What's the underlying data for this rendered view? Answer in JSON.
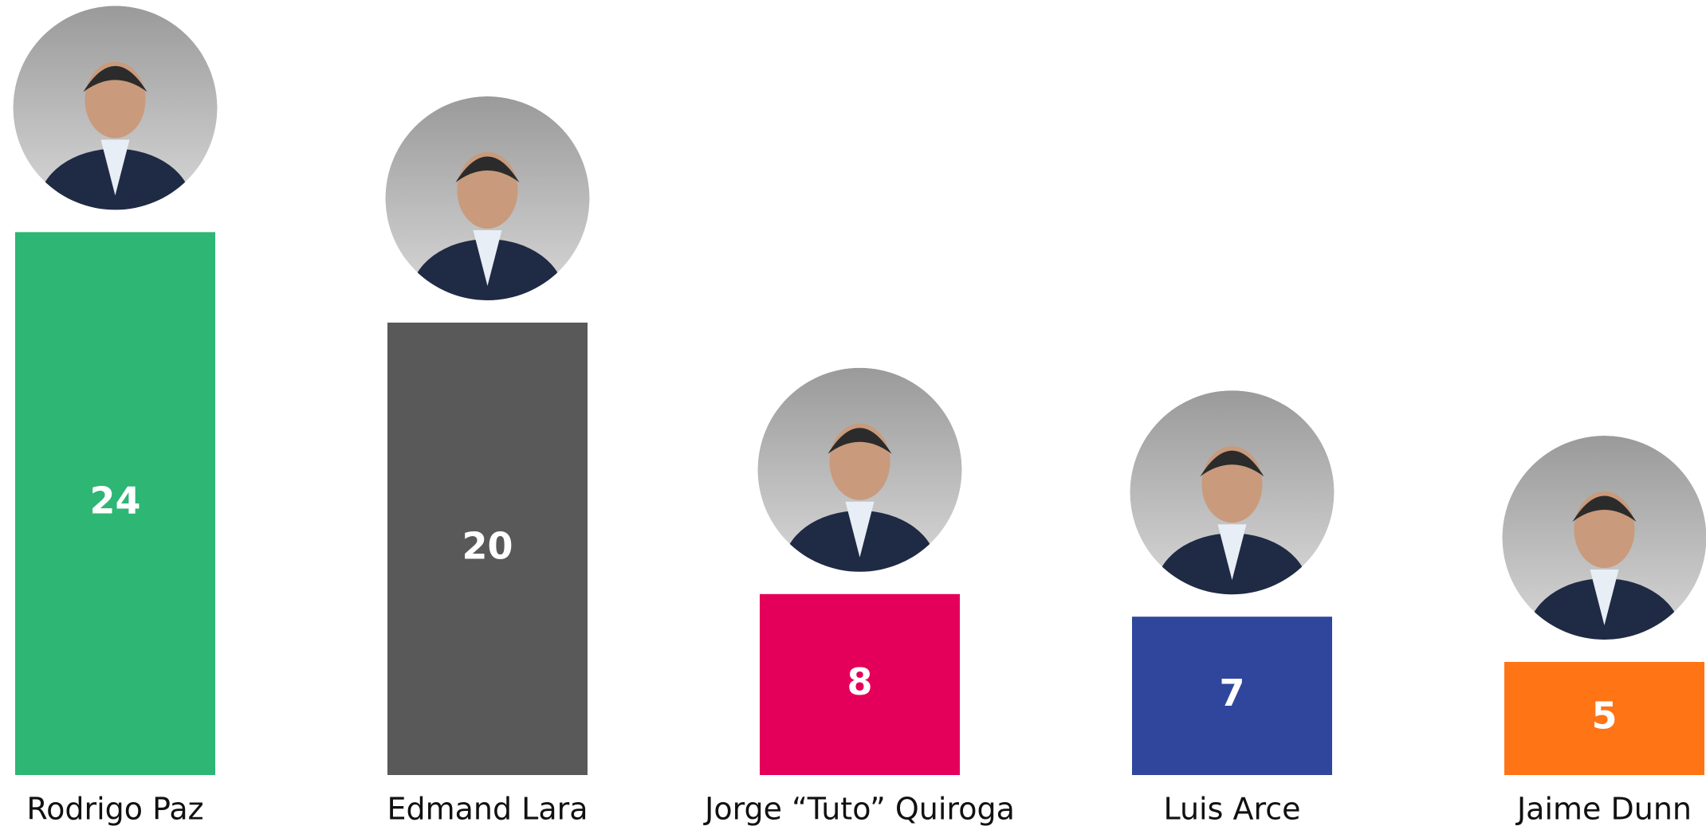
{
  "chart_data": {
    "type": "bar",
    "categories": [
      "Rodrigo Paz",
      "Edmand Lara",
      "Jorge “Tuto” Quiroga",
      "Luis Arce",
      "Jaime Dunn"
    ],
    "values": [
      24,
      20,
      8,
      7,
      5
    ],
    "colors": [
      "#2db674",
      "#595959",
      "#e4005a",
      "#30469d",
      "#ff7414"
    ]
  }
}
